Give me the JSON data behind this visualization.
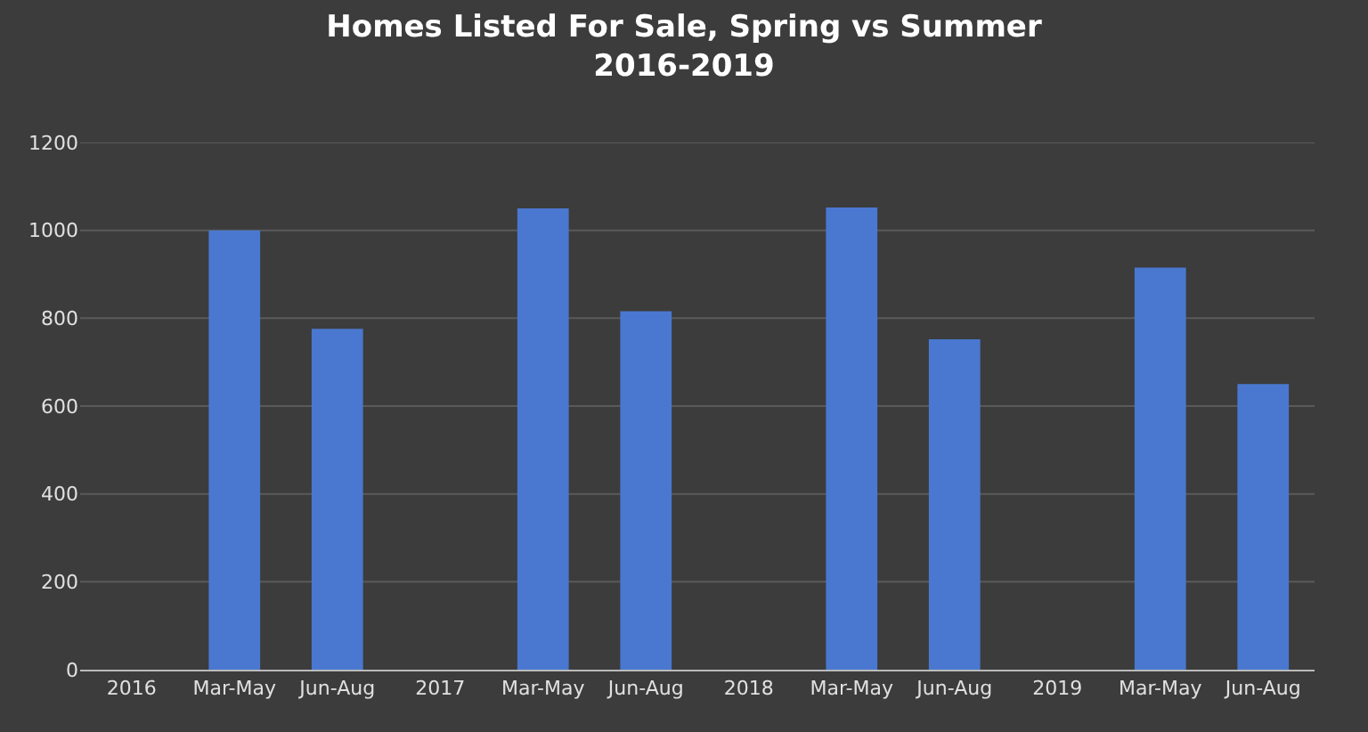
{
  "chart_data": {
    "type": "bar",
    "title": "Homes Listed For Sale, Spring vs Summer\n2016-2019",
    "categories": [
      "2016",
      "Mar-May",
      "Jun-Aug",
      "2017",
      "Mar-May",
      "Jun-Aug",
      "2018",
      "Mar-May",
      "Jun-Aug",
      "2019",
      "Mar-May",
      "Jun-Aug"
    ],
    "values": [
      null,
      1000,
      776,
      null,
      1050,
      816,
      null,
      1052,
      752,
      null,
      915,
      650
    ],
    "color": "#4a78d0",
    "ylim": [
      0,
      1200
    ],
    "yticks": [
      0,
      200,
      400,
      600,
      800,
      1000,
      1200
    ],
    "grid": "y"
  }
}
